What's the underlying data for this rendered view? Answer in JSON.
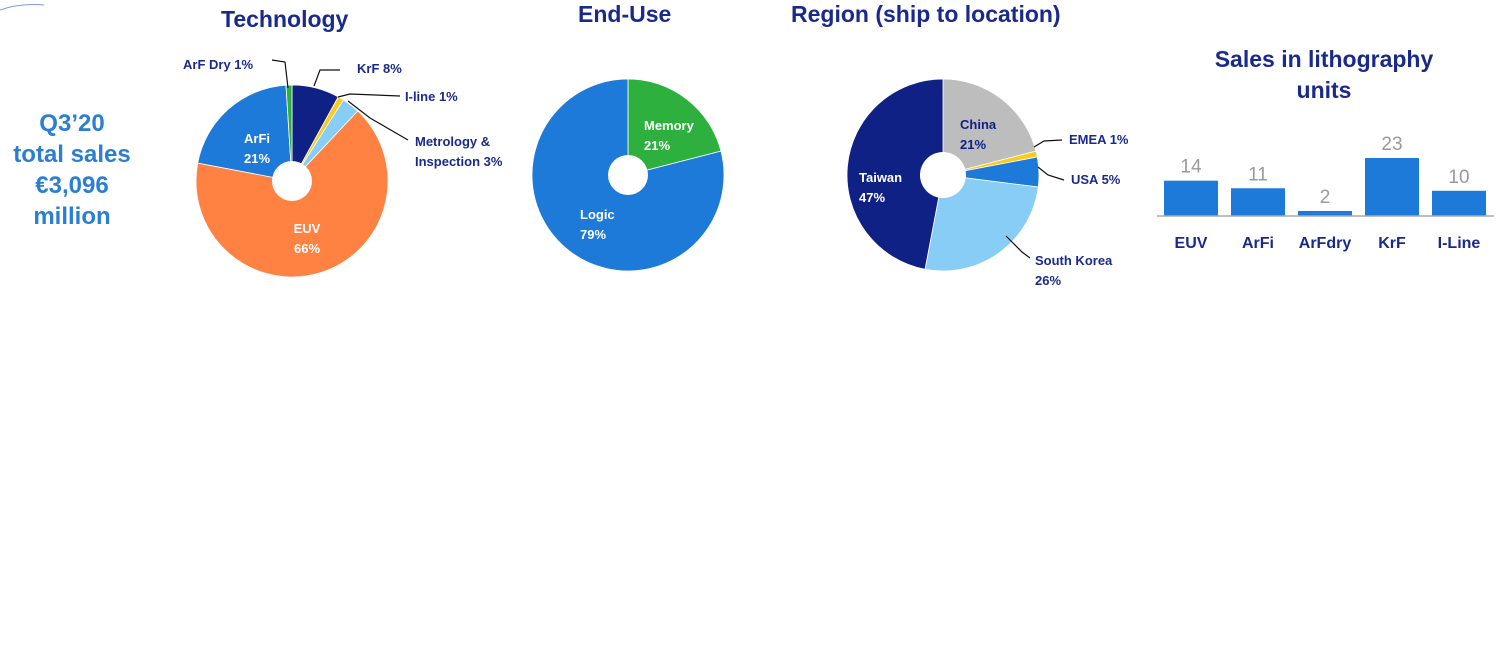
{
  "summary": {
    "period": "Q3’20",
    "line2": "total sales",
    "amount": "€3,096",
    "unit": "million"
  },
  "colors": {
    "navy": "#0f2184",
    "blue": "#1d7ad9",
    "light_blue": "#87cdf5",
    "orange": "#ff8242",
    "green": "#2db03e",
    "yellow": "#f7cc1d",
    "grey": "#bdbdbd",
    "value_text": "#9a9a9a",
    "title_text": "#1a2a8c"
  },
  "chart_data": [
    {
      "type": "pie",
      "title": "Technology",
      "slices": [
        {
          "label": "KrF",
          "value": 8,
          "display": "KrF 8%",
          "color": "#0f2184"
        },
        {
          "label": "I-line",
          "value": 1,
          "display": "I-line 1%",
          "color": "#f7cc1d"
        },
        {
          "label": "Metrology & Inspection",
          "value": 3,
          "display": [
            "Metrology &",
            "Inspection 3%"
          ],
          "color": "#87cdf5"
        },
        {
          "label": "EUV",
          "value": 66,
          "display": [
            "EUV",
            "66%"
          ],
          "color": "#ff8242"
        },
        {
          "label": "ArFi",
          "value": 21,
          "display": [
            "ArFi",
            "21%"
          ],
          "color": "#1d7ad9"
        },
        {
          "label": "ArF Dry",
          "value": 1,
          "display": "ArF Dry 1%",
          "color": "#2db03e"
        }
      ]
    },
    {
      "type": "pie",
      "title": "End-Use",
      "slices": [
        {
          "label": "Memory",
          "value": 21,
          "display": [
            "Memory",
            "21%"
          ],
          "color": "#2db03e"
        },
        {
          "label": "Logic",
          "value": 79,
          "display": [
            "Logic",
            "79%"
          ],
          "color": "#1d7ad9"
        }
      ]
    },
    {
      "type": "pie",
      "title": "Region (ship to location)",
      "slices": [
        {
          "label": "China",
          "value": 21,
          "display": [
            "China",
            "21%"
          ],
          "color": "#bdbdbd"
        },
        {
          "label": "EMEA",
          "value": 1,
          "display": "EMEA 1%",
          "color": "#f7cc1d"
        },
        {
          "label": "USA",
          "value": 5,
          "display": "USA 5%",
          "color": "#1d7ad9"
        },
        {
          "label": "South Korea",
          "value": 26,
          "display": [
            "South Korea",
            "26%"
          ],
          "color": "#87cdf5"
        },
        {
          "label": "Taiwan",
          "value": 47,
          "display": [
            "Taiwan",
            "47%"
          ],
          "color": "#0f2184"
        }
      ]
    },
    {
      "type": "bar",
      "title": "Sales in lithography units",
      "categories": [
        "EUV",
        "ArFi",
        "ArFdry",
        "KrF",
        "I-Line"
      ],
      "values": [
        14,
        11,
        2,
        23,
        10
      ],
      "ylim": [
        0,
        30
      ],
      "grid": false,
      "color": "#1d7ad9"
    }
  ]
}
